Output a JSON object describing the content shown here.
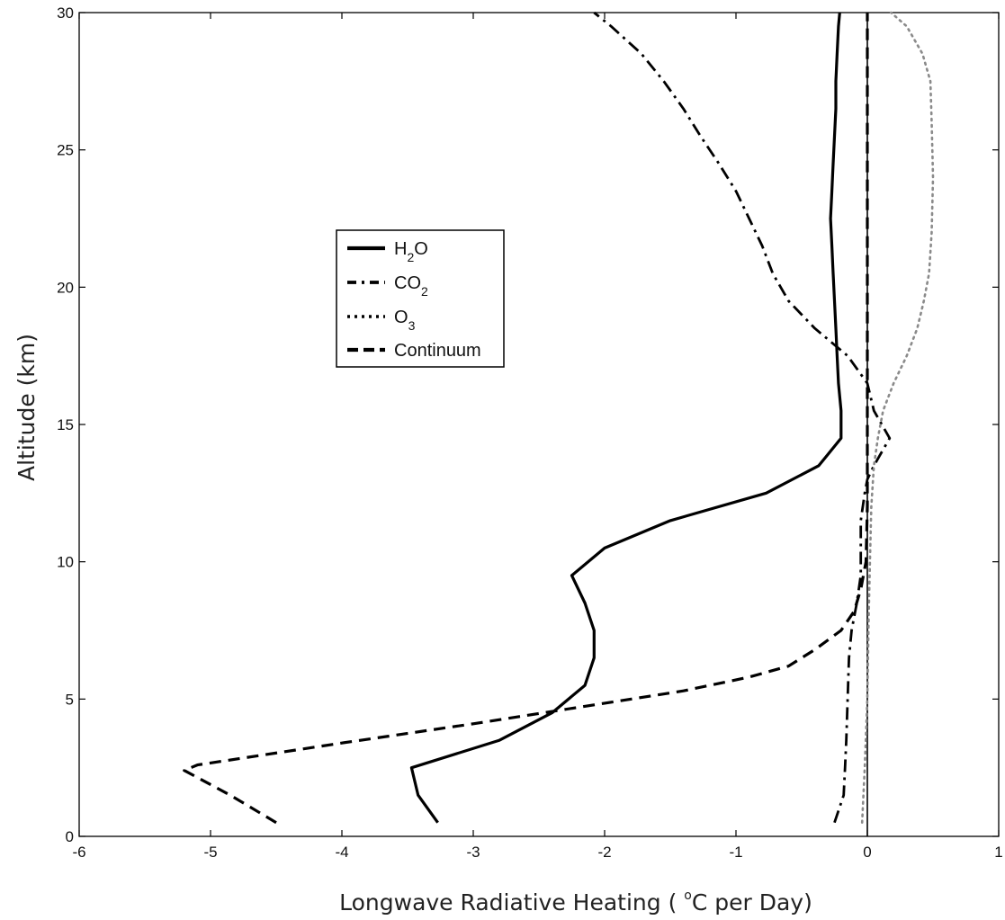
{
  "chart_data": {
    "type": "line",
    "title": "",
    "xlabel_pre": "Longwave Radiative Heating ( ",
    "xlabel_degree": "o",
    "xlabel_post": "C per Day)",
    "ylabel": "Altitude (km)",
    "xlim": [
      -6,
      1
    ],
    "ylim": [
      0,
      30
    ],
    "xticks": [
      -6,
      -5,
      -4,
      -3,
      -2,
      -1,
      0,
      1
    ],
    "yticks": [
      0,
      5,
      10,
      15,
      20,
      25,
      30
    ],
    "grid": false,
    "legend_position": "upper-center-left",
    "reference_line_x": 0,
    "series": [
      {
        "name_main": "H",
        "name_sub": "2",
        "name_tail": "O",
        "style": "solid",
        "color": "#000000",
        "points": [
          [
            -3.27,
            0.5
          ],
          [
            -3.42,
            1.5
          ],
          [
            -3.47,
            2.5
          ],
          [
            -2.8,
            3.5
          ],
          [
            -2.4,
            4.5
          ],
          [
            -2.15,
            5.5
          ],
          [
            -2.08,
            6.5
          ],
          [
            -2.08,
            7.5
          ],
          [
            -2.15,
            8.5
          ],
          [
            -2.25,
            9.5
          ],
          [
            -2.0,
            10.5
          ],
          [
            -1.5,
            11.5
          ],
          [
            -0.77,
            12.5
          ],
          [
            -0.37,
            13.5
          ],
          [
            -0.2,
            14.5
          ],
          [
            -0.2,
            15.5
          ],
          [
            -0.22,
            16.5
          ],
          [
            -0.23,
            17.5
          ],
          [
            -0.24,
            18.5
          ],
          [
            -0.25,
            19.5
          ],
          [
            -0.26,
            20.5
          ],
          [
            -0.27,
            21.5
          ],
          [
            -0.28,
            22.5
          ],
          [
            -0.27,
            23.5
          ],
          [
            -0.26,
            24.5
          ],
          [
            -0.25,
            25.5
          ],
          [
            -0.24,
            26.5
          ],
          [
            -0.24,
            27.5
          ],
          [
            -0.23,
            28.5
          ],
          [
            -0.22,
            29.5
          ],
          [
            -0.21,
            30
          ]
        ]
      },
      {
        "name_main": "CO",
        "name_sub": "2",
        "name_tail": "",
        "style": "dashdot",
        "color": "#000000",
        "points": [
          [
            -0.25,
            0.5
          ],
          [
            -0.18,
            1.5
          ],
          [
            -0.17,
            2.5
          ],
          [
            -0.16,
            3.5
          ],
          [
            -0.15,
            5.0
          ],
          [
            -0.14,
            6.5
          ],
          [
            -0.12,
            7.5
          ],
          [
            -0.08,
            8.5
          ],
          [
            -0.05,
            9.5
          ],
          [
            -0.05,
            10.5
          ],
          [
            -0.05,
            11.5
          ],
          [
            -0.02,
            12.5
          ],
          [
            0.0,
            13.0
          ],
          [
            0.05,
            13.5
          ],
          [
            0.17,
            14.5
          ],
          [
            0.05,
            15.5
          ],
          [
            0.0,
            16.5
          ],
          [
            -0.15,
            17.5
          ],
          [
            -0.4,
            18.5
          ],
          [
            -0.6,
            19.5
          ],
          [
            -0.72,
            20.5
          ],
          [
            -0.8,
            21.5
          ],
          [
            -0.9,
            22.5
          ],
          [
            -1.0,
            23.5
          ],
          [
            -1.13,
            24.5
          ],
          [
            -1.27,
            25.5
          ],
          [
            -1.4,
            26.5
          ],
          [
            -1.55,
            27.5
          ],
          [
            -1.72,
            28.5
          ],
          [
            -1.95,
            29.5
          ],
          [
            -2.08,
            30
          ]
        ]
      },
      {
        "name_main": "O",
        "name_sub": "3",
        "name_tail": "",
        "style": "dotted",
        "color": "#8a8a8a",
        "points": [
          [
            -0.04,
            0.5
          ],
          [
            -0.02,
            2.5
          ],
          [
            0.0,
            5.0
          ],
          [
            0.01,
            8.0
          ],
          [
            0.02,
            10.0
          ],
          [
            0.03,
            12.0
          ],
          [
            0.05,
            13.5
          ],
          [
            0.08,
            14.5
          ],
          [
            0.12,
            15.5
          ],
          [
            0.2,
            16.5
          ],
          [
            0.3,
            17.5
          ],
          [
            0.38,
            18.5
          ],
          [
            0.43,
            19.5
          ],
          [
            0.47,
            20.5
          ],
          [
            0.49,
            22.0
          ],
          [
            0.5,
            24.0
          ],
          [
            0.49,
            26.0
          ],
          [
            0.48,
            27.5
          ],
          [
            0.42,
            28.5
          ],
          [
            0.3,
            29.5
          ],
          [
            0.18,
            30
          ]
        ]
      },
      {
        "name_main": "Continuum",
        "name_sub": "",
        "name_tail": "",
        "style": "dashed",
        "color": "#000000",
        "points": [
          [
            -4.5,
            0.5
          ],
          [
            -4.85,
            1.5
          ],
          [
            -5.2,
            2.4
          ],
          [
            -5.1,
            2.6
          ],
          [
            -4.0,
            3.4
          ],
          [
            -3.0,
            4.1
          ],
          [
            -2.2,
            4.7
          ],
          [
            -1.4,
            5.3
          ],
          [
            -0.9,
            5.8
          ],
          [
            -0.6,
            6.2
          ],
          [
            -0.4,
            6.8
          ],
          [
            -0.2,
            7.5
          ],
          [
            -0.1,
            8.2
          ],
          [
            -0.05,
            9.0
          ],
          [
            -0.01,
            10.0
          ],
          [
            0.0,
            12.0
          ],
          [
            0.0,
            15.0
          ],
          [
            0.0,
            20.0
          ],
          [
            0.0,
            25.0
          ],
          [
            0.0,
            30.0
          ]
        ]
      }
    ]
  }
}
